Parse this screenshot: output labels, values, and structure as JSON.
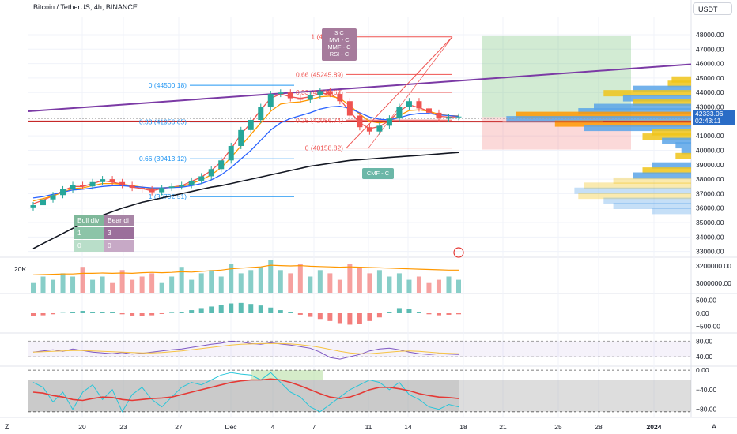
{
  "header": {
    "title": "Bitcoin / TetherUS, 4h, BINANCE",
    "currency_button": "USDT",
    "price_tag_value": "42333.06",
    "price_tag_countdown": "02:43:11"
  },
  "footer": {
    "left_icon": "Z",
    "right_icon": "A"
  },
  "colors": {
    "candle_up": "#26a69a",
    "candle_down": "#ef5350",
    "ema_fast": "#ef5350",
    "ema_mid": "#ff9800",
    "ema_slow": "#2962ff",
    "ema_long": "#131722",
    "trendline": "#7b3aa5",
    "support_line": "#c62828",
    "fib_left": "#2196f3",
    "fib_right": "#ef5350",
    "long_profit": "#4caf50",
    "long_loss": "#ef5350",
    "vp_blue": "#5aa4e8",
    "vp_yellow": "#f0c419",
    "vp_orange": "#ff9800"
  },
  "chart_data": [
    {
      "type": "line",
      "panel": "price",
      "title": "Bitcoin / TetherUS, 4h, BINANCE",
      "x_ticks": [
        "20",
        "23",
        "27",
        "Dec",
        "4",
        "7",
        "11",
        "14",
        "18",
        "21",
        "25",
        "28",
        "2024"
      ],
      "y_ticks": [
        "48000.00",
        "47000.00",
        "46000.00",
        "45000.00",
        "44000.00",
        "43000.00",
        "42000.00",
        "41000.00",
        "40000.00",
        "39000.00",
        "38000.00",
        "37000.00",
        "36000.00",
        "35000.00",
        "34000.00",
        "33000.00"
      ],
      "ylim": [
        32600,
        49200
      ],
      "close": [
        36200,
        36600,
        36900,
        37300,
        37600,
        37500,
        37800,
        38000,
        37800,
        37600,
        37400,
        37300,
        37100,
        37400,
        37500,
        37600,
        37900,
        38200,
        38700,
        39300,
        40300,
        41400,
        42100,
        43000,
        43900,
        44000,
        43600,
        43500,
        43800,
        44100,
        43900,
        43400,
        42400,
        41600,
        41300,
        41700,
        42200,
        43000,
        43400,
        42900,
        42600,
        42200,
        42300,
        42333
      ],
      "series": [
        {
          "name": "EMA fast",
          "values": [
            36300,
            36550,
            36850,
            37200,
            37500,
            37500,
            37700,
            37900,
            37800,
            37650,
            37450,
            37350,
            37200,
            37350,
            37450,
            37550,
            37850,
            38150,
            38600,
            39200,
            40100,
            41100,
            41900,
            42800,
            43600,
            43900,
            43700,
            43600,
            43700,
            43950,
            43900,
            43500,
            42700,
            41900,
            41500,
            41650,
            42050,
            42700,
            43150,
            42950,
            42700,
            42350,
            42300,
            42320
          ]
        },
        {
          "name": "EMA mid",
          "values": [
            36500,
            36650,
            36850,
            37100,
            37350,
            37400,
            37550,
            37700,
            37700,
            37650,
            37550,
            37450,
            37350,
            37400,
            37450,
            37500,
            37700,
            37950,
            38300,
            38800,
            39500,
            40300,
            41100,
            41900,
            42700,
            43200,
            43300,
            43350,
            43500,
            43700,
            43750,
            43600,
            43100,
            42500,
            42000,
            41900,
            42000,
            42400,
            42750,
            42800,
            42700,
            42500,
            42400,
            42380
          ]
        },
        {
          "name": "EMA slow",
          "values": [
            36700,
            36800,
            36950,
            37100,
            37250,
            37300,
            37400,
            37500,
            37550,
            37550,
            37500,
            37450,
            37400,
            37400,
            37420,
            37450,
            37550,
            37700,
            37950,
            38300,
            38800,
            39400,
            40000,
            40700,
            41400,
            41900,
            42200,
            42400,
            42600,
            42850,
            43000,
            43050,
            42900,
            42600,
            42300,
            42150,
            42100,
            42250,
            42450,
            42550,
            42550,
            42450,
            42400,
            42350
          ]
        },
        {
          "name": "EMA long",
          "values": [
            33200,
            33550,
            33900,
            34250,
            34600,
            34900,
            35200,
            35500,
            35750,
            36000,
            36200,
            36400,
            36550,
            36700,
            36850,
            37000,
            37150,
            37300,
            37450,
            37550,
            37700,
            37850,
            38000,
            38150,
            38300,
            38450,
            38600,
            38750,
            38900,
            39000,
            39100,
            39200,
            39300,
            39350,
            39400,
            39450,
            39500,
            39550,
            39600,
            39650,
            39700,
            39750,
            39800,
            39850
          ]
        }
      ],
      "fib_left": [
        "0 (44500.18)",
        "0.33 (41956.65)",
        "0.66 (39413.12)",
        "1 (36792.51)"
      ],
      "fib_right": [
        "1 (47849.4",
        "0.66 (45245.89)",
        "0.33 (44012.67)",
        "0.25 (42086.74)",
        "0 (40158.82)"
      ],
      "annotations": [
        "MVI - C",
        "MMF - C",
        "RSI - C",
        "CMF - C",
        "3 C",
        "Bull div",
        "Bear di"
      ]
    },
    {
      "type": "bar",
      "panel": "volume",
      "y_ticks": [
        "3200000.00",
        "3000000.00"
      ],
      "label_left": "20K",
      "series": [
        {
          "values": [
            0.3,
            0.5,
            0.4,
            0.6,
            0.5,
            0.8,
            0.4,
            0.5,
            0.3,
            0.7,
            0.4,
            0.5,
            0.6,
            0.3,
            0.5,
            0.8,
            0.4,
            0.6,
            0.7,
            0.5,
            0.9,
            0.6,
            0.7,
            0.8,
            1.0,
            0.7,
            0.6,
            0.9,
            0.5,
            0.7,
            0.6,
            0.4,
            0.9,
            0.8,
            0.6,
            0.7,
            0.5,
            0.6,
            0.4,
            0.5,
            0.3,
            0.4,
            0.5,
            0.4
          ]
        },
        {
          "name": "Volume MA",
          "values": [
            0.55,
            0.56,
            0.57,
            0.58,
            0.58,
            0.6,
            0.6,
            0.61,
            0.6,
            0.61,
            0.6,
            0.62,
            0.63,
            0.62,
            0.63,
            0.65,
            0.64,
            0.66,
            0.68,
            0.7,
            0.74,
            0.76,
            0.78,
            0.8,
            0.85,
            0.84,
            0.83,
            0.84,
            0.82,
            0.81,
            0.8,
            0.79,
            0.8,
            0.79,
            0.78,
            0.77,
            0.76,
            0.75,
            0.74,
            0.73,
            0.72,
            0.71,
            0.7,
            0.7
          ]
        }
      ]
    },
    {
      "type": "bar",
      "panel": "macd",
      "y_ticks": [
        "500.00",
        "0.00",
        "−500.00"
      ],
      "ylim": [
        -700,
        700
      ],
      "values": [
        -120,
        -80,
        -40,
        10,
        60,
        90,
        40,
        60,
        30,
        -40,
        -90,
        -120,
        -80,
        -30,
        20,
        50,
        120,
        200,
        260,
        320,
        380,
        400,
        360,
        300,
        220,
        120,
        40,
        -60,
        -140,
        -220,
        -300,
        -380,
        -440,
        -400,
        -300,
        -160,
        40,
        200,
        160,
        60,
        -40,
        -80,
        -60,
        -40
      ]
    },
    {
      "type": "line",
      "panel": "rsi",
      "y_ticks": [
        "80.00",
        "40.00"
      ],
      "ylim": [
        20,
        95
      ],
      "series": [
        {
          "values": [
            52,
            55,
            58,
            54,
            60,
            56,
            52,
            50,
            48,
            51,
            47,
            49,
            52,
            55,
            58,
            60,
            64,
            68,
            72,
            75,
            80,
            78,
            74,
            72,
            76,
            73,
            70,
            66,
            62,
            52,
            38,
            34,
            40,
            46,
            55,
            60,
            62,
            58,
            52,
            48,
            46,
            48,
            47,
            46
          ]
        },
        {
          "name": "RSI MA",
          "values": [
            52,
            53,
            54,
            55,
            56,
            56,
            55,
            54,
            53,
            52,
            51,
            50,
            50,
            51,
            53,
            55,
            58,
            61,
            64,
            67,
            70,
            72,
            73,
            74,
            74,
            74,
            73,
            71,
            68,
            64,
            59,
            54,
            50,
            48,
            48,
            50,
            52,
            54,
            55,
            54,
            52,
            50,
            49,
            48
          ]
        }
      ]
    },
    {
      "type": "line",
      "panel": "oscillator",
      "y_ticks": [
        "0.00",
        "−40.00",
        "−80.00"
      ],
      "ylim": [
        -95,
        5
      ],
      "series": [
        {
          "name": "fast",
          "values": [
            -25,
            -35,
            -65,
            -45,
            -80,
            -45,
            -30,
            -60,
            -40,
            -85,
            -50,
            -35,
            -60,
            -75,
            -55,
            -35,
            -25,
            -30,
            -20,
            -10,
            -5,
            -8,
            -10,
            -20,
            -5,
            -25,
            -45,
            -55,
            -75,
            -85,
            -70,
            -55,
            -40,
            -30,
            -20,
            -25,
            -40,
            -25,
            -50,
            -60,
            -75,
            -80,
            -70,
            -75
          ]
        },
        {
          "name": "slow",
          "values": [
            -45,
            -47,
            -52,
            -55,
            -60,
            -62,
            -58,
            -55,
            -56,
            -60,
            -62,
            -60,
            -58,
            -57,
            -55,
            -50,
            -45,
            -40,
            -35,
            -30,
            -25,
            -22,
            -20,
            -20,
            -18,
            -20,
            -25,
            -32,
            -40,
            -48,
            -55,
            -58,
            -55,
            -48,
            -40,
            -35,
            -35,
            -38,
            -42,
            -48,
            -52,
            -55,
            -56,
            -58
          ]
        }
      ]
    }
  ]
}
